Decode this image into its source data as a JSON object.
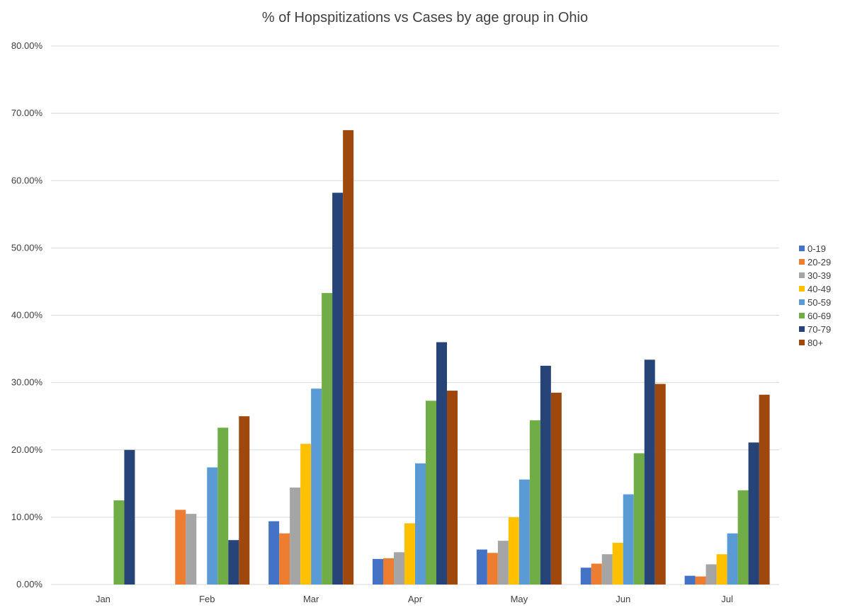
{
  "chart_data": {
    "type": "bar",
    "title": "% of Hopspitizations vs Cases by age group in Ohio",
    "xlabel": "",
    "ylabel": "",
    "ylim": [
      0,
      80
    ],
    "y_ticks": [
      "0.00%",
      "10.00%",
      "20.00%",
      "30.00%",
      "40.00%",
      "50.00%",
      "60.00%",
      "70.00%",
      "80.00%"
    ],
    "categories": [
      "Jan",
      "Feb",
      "Mar",
      "Apr",
      "May",
      "Jun",
      "Jul"
    ],
    "legend_position": "right",
    "grid": true,
    "series": [
      {
        "name": "0-19",
        "color": "#4472C4",
        "values": [
          0,
          0,
          9.4,
          3.8,
          5.2,
          2.5,
          1.3
        ]
      },
      {
        "name": "20-29",
        "color": "#ED7D31",
        "values": [
          0,
          11.1,
          7.6,
          3.9,
          4.7,
          3.1,
          1.2
        ]
      },
      {
        "name": "30-39",
        "color": "#A5A5A5",
        "values": [
          0,
          10.5,
          14.4,
          4.8,
          6.5,
          4.5,
          3.0
        ]
      },
      {
        "name": "40-49",
        "color": "#FFC000",
        "values": [
          0,
          0,
          20.9,
          9.1,
          10.0,
          6.2,
          4.5
        ]
      },
      {
        "name": "50-59",
        "color": "#5B9BD5",
        "values": [
          0,
          17.4,
          29.1,
          18.0,
          15.6,
          13.4,
          7.6
        ]
      },
      {
        "name": "60-69",
        "color": "#70AD47",
        "values": [
          12.5,
          23.3,
          43.3,
          27.3,
          24.4,
          19.5,
          14.0
        ]
      },
      {
        "name": "70-79",
        "color": "#264478",
        "values": [
          20.0,
          6.6,
          58.2,
          36.0,
          32.5,
          33.4,
          21.1
        ]
      },
      {
        "name": "80+",
        "color": "#9E480E",
        "values": [
          0,
          25.0,
          67.5,
          28.8,
          28.5,
          29.8,
          28.2
        ]
      }
    ]
  }
}
